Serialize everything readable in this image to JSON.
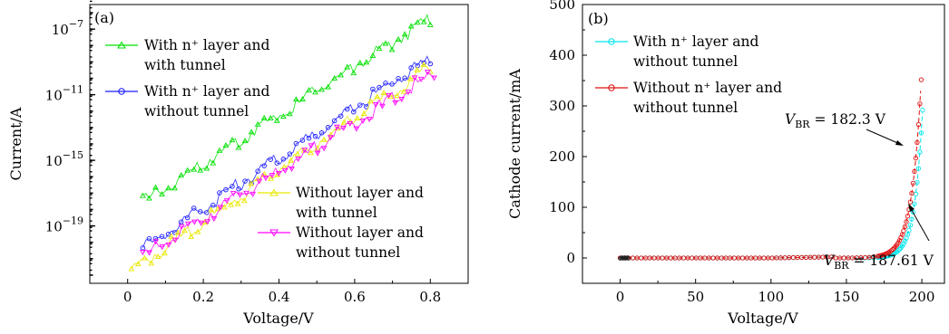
{
  "chart_data": [
    {
      "type": "scatter",
      "panel_label": "(a)",
      "xlabel": "Voltage/V",
      "ylabel": "Current/A",
      "xlim": [
        -0.1,
        0.9
      ],
      "ylim_log10": [
        -22.5,
        -5.5
      ],
      "yscale": "log",
      "x_ticks": [
        "0",
        "0.2",
        "0.4",
        "0.6",
        "0.8"
      ],
      "y_ticks": [
        {
          "base": "10",
          "exp": "−7"
        },
        {
          "base": "10",
          "exp": "−11"
        },
        {
          "base": "10",
          "exp": "−15"
        },
        {
          "base": "10",
          "exp": "−19"
        }
      ],
      "legend_placement": "top-left and bottom-right",
      "series": [
        {
          "legend": [
            "With n⁺ layer and",
            "with tunnel"
          ],
          "color": "#00e000",
          "x_start": 0.04,
          "x_end": 0.8,
          "log10_start": -17.6,
          "log10_end": -6.4
        },
        {
          "legend": [
            "With n⁺ layer and",
            "without tunnel"
          ],
          "color": "#1a1aff",
          "x_start": 0.04,
          "x_end": 0.8,
          "log10_start": -20.4,
          "log10_end": -8.8
        },
        {
          "legend": [
            "Without layer and",
            "with tunnel"
          ],
          "color": "#e8e800",
          "x_start": 0.01,
          "x_end": 0.8,
          "log10_start": -21.8,
          "log10_end": -9.3
        },
        {
          "legend": [
            "Without layer and",
            "without tunnel"
          ],
          "color": "#ff00ff",
          "x_start": 0.04,
          "x_end": 0.81,
          "log10_start": -20.9,
          "log10_end": -9.7
        }
      ]
    },
    {
      "type": "scatter",
      "panel_label": "(b)",
      "xlabel": "Voltage/V",
      "ylabel": "Cathode current/mA",
      "xlim": [
        -25,
        215
      ],
      "ylim": [
        -50,
        500
      ],
      "x_ticks": [
        "0",
        "50",
        "100",
        "150",
        "200"
      ],
      "y_ticks": [
        "0",
        "100",
        "200",
        "300",
        "400",
        "500"
      ],
      "legend_placement": "top-left",
      "series": [
        {
          "legend": [
            "With n⁺ layer and",
            "without tunnel"
          ],
          "color": "#00e5ee",
          "breakdown_voltage": 187.61,
          "x_end": 201,
          "y_end": 320
        },
        {
          "legend": [
            "Without n⁺ layer and",
            "without tunnel"
          ],
          "color": "#e01010",
          "breakdown_voltage": 182.3,
          "x_end": 200,
          "y_end": 375
        }
      ],
      "annotations": [
        {
          "symbol": "V",
          "sub": "BR",
          "text": " = 182.3 V"
        },
        {
          "symbol": "V",
          "sub": "BR",
          "text": " = 187.61 V"
        }
      ]
    }
  ]
}
